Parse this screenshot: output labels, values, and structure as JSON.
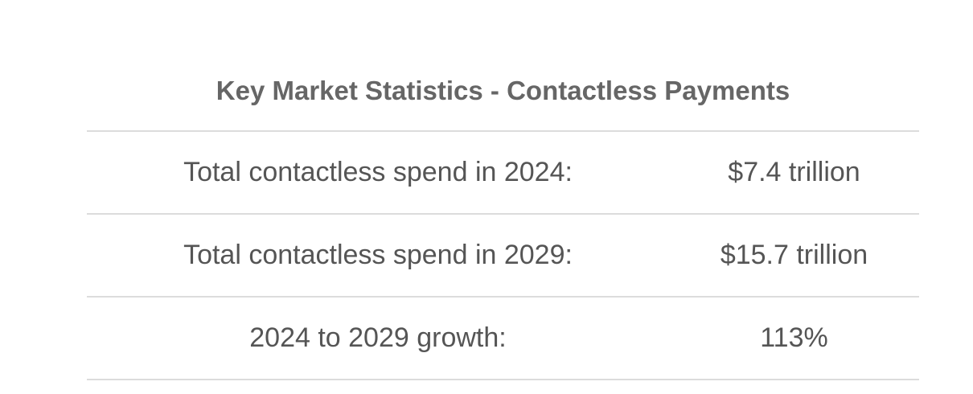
{
  "table": {
    "title": "Key Market Statistics - Contactless Payments",
    "rows": [
      [
        "Total contactless spend in 2024:",
        "$7.4 trillion"
      ],
      [
        "Total contactless spend in 2029:",
        "$15.7 trillion"
      ],
      [
        "2024 to 2029 growth:",
        "113%"
      ]
    ]
  }
}
